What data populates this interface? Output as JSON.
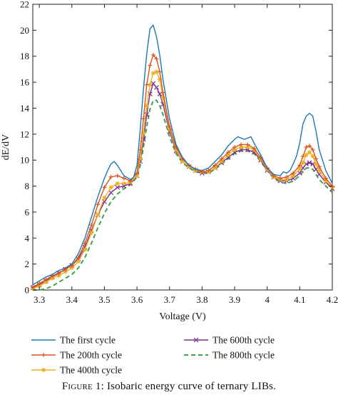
{
  "caption": {
    "figure_label": "Figure 1:",
    "text": "Isobaric energy curve of ternary LIBs."
  },
  "chart_data": {
    "type": "line",
    "title": "",
    "xlabel": "Voltage (V)",
    "ylabel": "dE/dV",
    "xlim": [
      3.28,
      4.2
    ],
    "ylim": [
      0,
      22
    ],
    "xticks": [
      3.3,
      3.4,
      3.5,
      3.6,
      3.7,
      3.8,
      3.9,
      4.0,
      4.1,
      4.2
    ],
    "xtick_labels": [
      "3.3",
      "3.4",
      "3.5",
      "3.6",
      "3.7",
      "3.8",
      "3.9",
      "4",
      "4.1",
      "4.2"
    ],
    "yticks": [
      0,
      2,
      4,
      6,
      8,
      10,
      12,
      14,
      16,
      18,
      20,
      22
    ],
    "ytick_labels": [
      "0",
      "2",
      "4",
      "6",
      "8",
      "10",
      "12",
      "14",
      "16",
      "18",
      "20",
      "22"
    ],
    "grid": false,
    "legend_position": "below plot, two columns",
    "series": [
      {
        "name": "The first cycle",
        "color": "#1f77b4",
        "line_style": "solid",
        "marker": "none",
        "x": [
          3.28,
          3.3,
          3.32,
          3.34,
          3.36,
          3.38,
          3.4,
          3.42,
          3.44,
          3.46,
          3.48,
          3.5,
          3.51,
          3.52,
          3.53,
          3.54,
          3.56,
          3.58,
          3.59,
          3.6,
          3.61,
          3.62,
          3.63,
          3.64,
          3.65,
          3.66,
          3.67,
          3.68,
          3.7,
          3.72,
          3.74,
          3.76,
          3.78,
          3.8,
          3.82,
          3.84,
          3.86,
          3.88,
          3.9,
          3.91,
          3.92,
          3.93,
          3.94,
          3.95,
          3.96,
          3.98,
          4.0,
          4.02,
          4.04,
          4.05,
          4.06,
          4.07,
          4.08,
          4.09,
          4.1,
          4.11,
          4.12,
          4.13,
          4.14,
          4.15,
          4.16,
          4.18,
          4.2
        ],
        "y": [
          0.4,
          0.7,
          1.0,
          1.2,
          1.5,
          1.7,
          2.0,
          2.8,
          4.0,
          5.6,
          7.2,
          8.6,
          9.2,
          9.7,
          9.9,
          9.6,
          8.8,
          8.5,
          8.7,
          9.6,
          12.4,
          15.5,
          18.2,
          20.1,
          20.4,
          19.5,
          18.1,
          16.2,
          13.2,
          11.2,
          10.2,
          9.6,
          9.3,
          9.2,
          9.4,
          9.9,
          10.4,
          11.1,
          11.6,
          11.8,
          11.7,
          11.6,
          11.7,
          11.8,
          11.3,
          10.4,
          9.4,
          8.9,
          8.8,
          9.1,
          9.0,
          9.2,
          9.7,
          10.3,
          11.3,
          12.8,
          13.4,
          13.6,
          13.4,
          12.2,
          10.8,
          9.2,
          8.2
        ]
      },
      {
        "name": "The 200th cycle",
        "color": "#d9541e",
        "line_style": "solid",
        "marker": "plus",
        "x": [
          3.28,
          3.3,
          3.32,
          3.34,
          3.36,
          3.38,
          3.4,
          3.42,
          3.44,
          3.46,
          3.48,
          3.5,
          3.52,
          3.54,
          3.56,
          3.58,
          3.6,
          3.61,
          3.62,
          3.63,
          3.64,
          3.65,
          3.66,
          3.67,
          3.68,
          3.7,
          3.72,
          3.74,
          3.76,
          3.78,
          3.8,
          3.82,
          3.84,
          3.86,
          3.88,
          3.9,
          3.92,
          3.94,
          3.96,
          3.98,
          4.0,
          4.02,
          4.04,
          4.06,
          4.08,
          4.1,
          4.11,
          4.12,
          4.13,
          4.14,
          4.15,
          4.16,
          4.18,
          4.2
        ],
        "y": [
          0.2,
          0.5,
          0.8,
          1.1,
          1.3,
          1.6,
          1.9,
          2.5,
          3.6,
          5.0,
          6.6,
          7.9,
          8.7,
          8.8,
          8.6,
          8.4,
          9.0,
          10.8,
          13.2,
          15.8,
          17.3,
          18.1,
          17.8,
          16.8,
          15.2,
          12.6,
          11.0,
          10.1,
          9.6,
          9.3,
          9.1,
          9.2,
          9.6,
          10.1,
          10.6,
          11.0,
          11.2,
          11.2,
          10.9,
          10.2,
          9.4,
          8.8,
          8.6,
          8.7,
          9.0,
          9.6,
          10.3,
          11.0,
          11.1,
          10.8,
          10.1,
          9.5,
          8.6,
          8.0
        ]
      },
      {
        "name": "The 400th cycle",
        "color": "#edb120",
        "line_style": "solid",
        "marker": "star",
        "x": [
          3.28,
          3.3,
          3.32,
          3.34,
          3.36,
          3.38,
          3.4,
          3.42,
          3.44,
          3.46,
          3.48,
          3.5,
          3.52,
          3.54,
          3.56,
          3.58,
          3.6,
          3.61,
          3.62,
          3.63,
          3.64,
          3.65,
          3.66,
          3.67,
          3.68,
          3.7,
          3.72,
          3.74,
          3.76,
          3.78,
          3.8,
          3.82,
          3.84,
          3.86,
          3.88,
          3.9,
          3.92,
          3.94,
          3.96,
          3.98,
          4.0,
          4.02,
          4.04,
          4.06,
          4.08,
          4.1,
          4.11,
          4.12,
          4.13,
          4.14,
          4.15,
          4.16,
          4.18,
          4.2
        ],
        "y": [
          0.1,
          0.3,
          0.6,
          0.9,
          1.1,
          1.4,
          1.7,
          2.2,
          3.1,
          4.4,
          5.8,
          7.1,
          7.9,
          8.2,
          8.2,
          8.3,
          8.8,
          10.1,
          12.1,
          14.2,
          15.8,
          16.7,
          16.8,
          16.2,
          14.8,
          12.4,
          10.8,
          9.9,
          9.5,
          9.2,
          9.1,
          9.1,
          9.4,
          9.9,
          10.4,
          10.8,
          11.0,
          11.0,
          10.8,
          10.1,
          9.3,
          8.7,
          8.5,
          8.5,
          8.8,
          9.3,
          9.8,
          10.4,
          10.6,
          10.3,
          9.7,
          9.2,
          8.4,
          7.9
        ]
      },
      {
        "name": "The 600th cycle",
        "color": "#7e2f8e",
        "line_style": "solid",
        "marker": "x",
        "x": [
          3.28,
          3.3,
          3.32,
          3.34,
          3.36,
          3.38,
          3.4,
          3.42,
          3.44,
          3.46,
          3.48,
          3.5,
          3.52,
          3.54,
          3.56,
          3.58,
          3.6,
          3.61,
          3.62,
          3.63,
          3.64,
          3.65,
          3.66,
          3.67,
          3.68,
          3.7,
          3.72,
          3.74,
          3.76,
          3.78,
          3.8,
          3.82,
          3.84,
          3.86,
          3.88,
          3.9,
          3.92,
          3.94,
          3.96,
          3.98,
          4.0,
          4.02,
          4.04,
          4.06,
          4.08,
          4.1,
          4.11,
          4.12,
          4.13,
          4.14,
          4.15,
          4.16,
          4.18,
          4.2
        ],
        "y": [
          0.2,
          0.4,
          0.7,
          1.0,
          1.3,
          1.6,
          1.9,
          2.4,
          3.3,
          4.6,
          5.8,
          6.8,
          7.5,
          7.9,
          8.0,
          8.2,
          8.8,
          9.9,
          11.6,
          13.5,
          15.1,
          15.9,
          15.6,
          15.1,
          14.3,
          12.2,
          10.7,
          9.9,
          9.5,
          9.2,
          9.0,
          9.1,
          9.4,
          9.8,
          10.2,
          10.6,
          10.8,
          10.8,
          10.6,
          10.0,
          9.2,
          8.7,
          8.4,
          8.4,
          8.6,
          9.0,
          9.4,
          9.7,
          9.8,
          9.7,
          9.3,
          8.9,
          8.3,
          7.8
        ]
      },
      {
        "name": "The 800th cycle",
        "color": "#3fa34d",
        "line_style": "dashed",
        "marker": "none",
        "x": [
          3.28,
          3.3,
          3.32,
          3.34,
          3.36,
          3.38,
          3.4,
          3.42,
          3.44,
          3.46,
          3.48,
          3.5,
          3.52,
          3.54,
          3.56,
          3.58,
          3.6,
          3.61,
          3.62,
          3.63,
          3.64,
          3.65,
          3.66,
          3.67,
          3.68,
          3.7,
          3.72,
          3.74,
          3.76,
          3.78,
          3.8,
          3.82,
          3.84,
          3.86,
          3.88,
          3.9,
          3.92,
          3.94,
          3.96,
          3.98,
          4.0,
          4.02,
          4.04,
          4.06,
          4.08,
          4.1,
          4.11,
          4.12,
          4.13,
          4.14,
          4.15,
          4.16,
          4.18,
          4.2
        ],
        "y": [
          0.0,
          0.0,
          0.1,
          0.3,
          0.6,
          0.9,
          1.2,
          1.7,
          2.5,
          3.6,
          4.8,
          5.9,
          6.8,
          7.4,
          7.8,
          8.1,
          8.7,
          9.6,
          11.0,
          12.6,
          13.9,
          14.6,
          14.6,
          14.2,
          13.5,
          11.8,
          10.5,
          9.8,
          9.4,
          9.1,
          9.0,
          9.0,
          9.3,
          9.7,
          10.1,
          10.5,
          10.7,
          10.7,
          10.5,
          9.9,
          9.2,
          8.6,
          8.3,
          8.2,
          8.4,
          8.8,
          9.1,
          9.4,
          9.4,
          9.3,
          8.9,
          8.5,
          8.0,
          7.5
        ]
      }
    ]
  }
}
